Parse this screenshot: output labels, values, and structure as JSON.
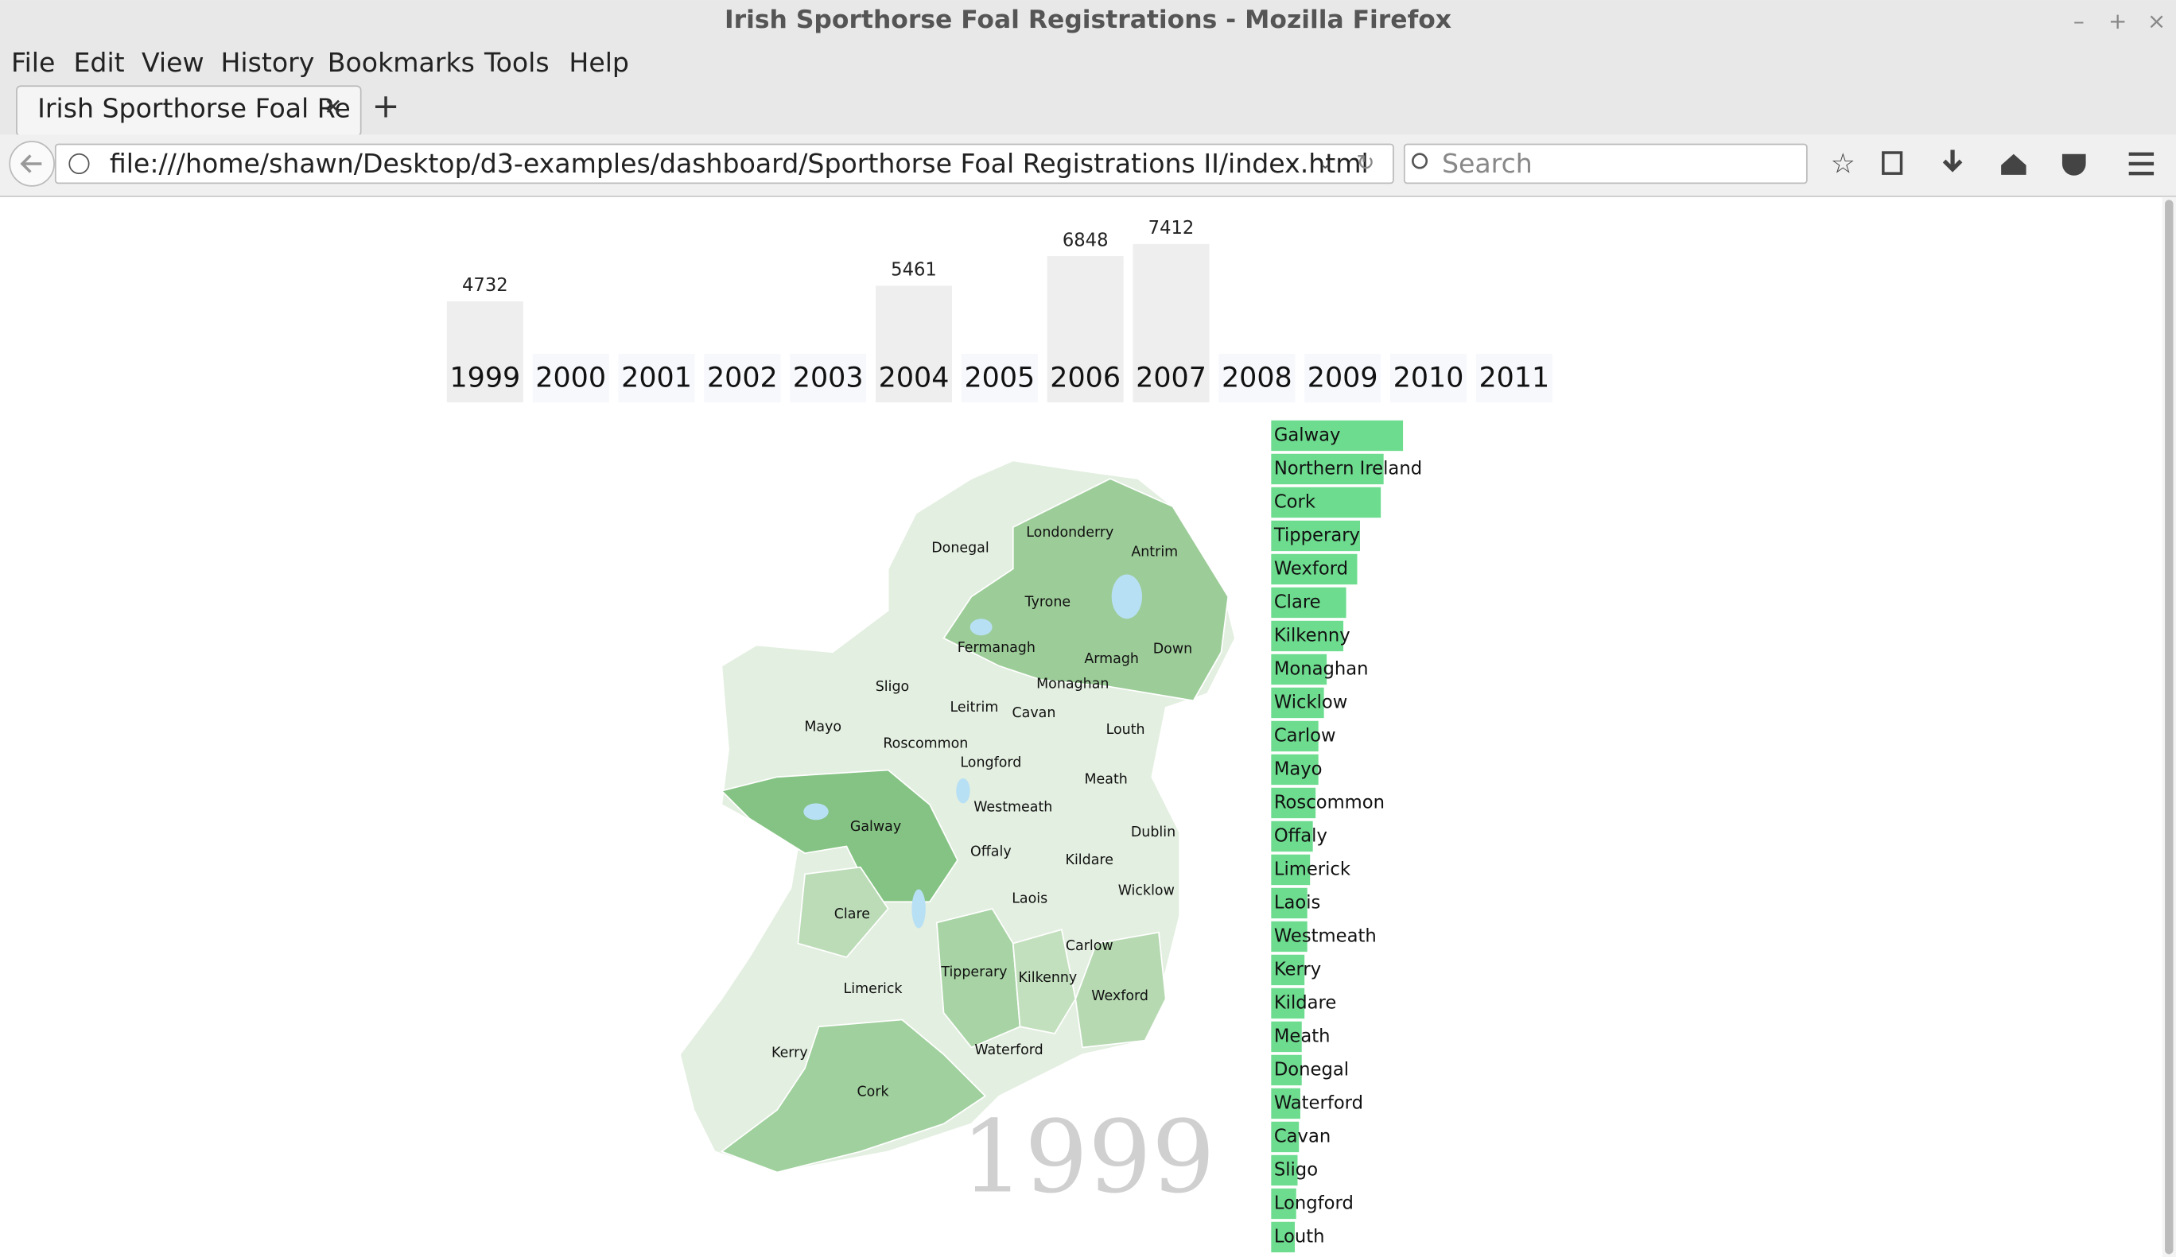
{
  "window": {
    "title": "Irish Sporthorse Foal Registrations - Mozilla Firefox"
  },
  "menu": [
    "File",
    "Edit",
    "View",
    "History",
    "Bookmarks",
    "Tools",
    "Help"
  ],
  "tab": {
    "title": "Irish Sporthorse Foal Re"
  },
  "address": {
    "url": "file:///home/shawn/Desktop/d3-examples/dashboard/Sporthorse Foal Registrations II/index.html",
    "search_placeholder": "Search"
  },
  "chart_data": [
    {
      "type": "bar",
      "categories": [
        "1999",
        "2000",
        "2001",
        "2002",
        "2003",
        "2004",
        "2005",
        "2006",
        "2007",
        "2008",
        "2009",
        "2010",
        "2011"
      ],
      "values": [
        4732,
        null,
        null,
        null,
        null,
        5461,
        null,
        6848,
        7412,
        null,
        null,
        null,
        null
      ],
      "color": "#eeeeee"
    },
    {
      "type": "hbar",
      "categories": [
        "Galway",
        "Northern Ireland",
        "Cork",
        "Tipperary",
        "Wexford",
        "Clare",
        "Kilkenny",
        "Monaghan",
        "Wicklow",
        "Carlow",
        "Mayo",
        "Roscommon",
        "Offaly",
        "Limerick",
        "Laois",
        "Westmeath",
        "Kerry",
        "Kildare",
        "Meath",
        "Donegal",
        "Waterford",
        "Cavan",
        "Sligo",
        "Longford",
        "Louth"
      ],
      "values": [
        95,
        81,
        79,
        64,
        62,
        54,
        52,
        40,
        38,
        34,
        34,
        32,
        30,
        28,
        26,
        26,
        24,
        24,
        22,
        22,
        21,
        20,
        19,
        18,
        17
      ],
      "color": "#6ddc8f"
    }
  ],
  "map": {
    "counties": [
      "Donegal",
      "Londonderry",
      "Antrim",
      "Tyrone",
      "Fermanagh",
      "Armagh",
      "Down",
      "Monaghan",
      "Sligo",
      "Leitrim",
      "Cavan",
      "Louth",
      "Mayo",
      "Roscommon",
      "Longford",
      "Meath",
      "Westmeath",
      "Galway",
      "Dublin",
      "Offaly",
      "Kildare",
      "Wicklow",
      "Laois",
      "Clare",
      "Carlow",
      "Tipperary",
      "Kilkenny",
      "Limerick",
      "Wexford",
      "Waterford",
      "Kerry",
      "Cork"
    ],
    "year_label": "1999"
  }
}
